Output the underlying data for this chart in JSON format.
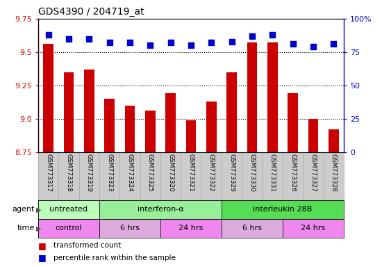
{
  "title": "GDS4390 / 204719_at",
  "samples": [
    "GSM773317",
    "GSM773318",
    "GSM773319",
    "GSM773323",
    "GSM773324",
    "GSM773325",
    "GSM773320",
    "GSM773321",
    "GSM773322",
    "GSM773329",
    "GSM773330",
    "GSM773331",
    "GSM773326",
    "GSM773327",
    "GSM773328"
  ],
  "red_values": [
    9.56,
    9.35,
    9.37,
    9.15,
    9.1,
    9.06,
    9.19,
    8.99,
    9.13,
    9.35,
    9.57,
    9.57,
    9.19,
    9.0,
    8.92
  ],
  "blue_values": [
    88,
    85,
    85,
    82,
    82,
    80,
    82,
    80,
    82,
    83,
    87,
    88,
    81,
    79,
    81
  ],
  "ylim_left": [
    8.75,
    9.75
  ],
  "ylim_right": [
    0,
    100
  ],
  "yticks_left": [
    8.75,
    9.0,
    9.25,
    9.5,
    9.75
  ],
  "yticks_right": [
    0,
    25,
    50,
    75,
    100
  ],
  "ytick_labels_right": [
    "0",
    "25",
    "50",
    "75",
    "100%"
  ],
  "bar_color": "#cc0000",
  "dot_color": "#0000cc",
  "agent_groups": [
    {
      "label": "untreated",
      "start": 0,
      "end": 3,
      "color": "#bbffbb"
    },
    {
      "label": "interferon-α",
      "start": 3,
      "end": 9,
      "color": "#99ee99"
    },
    {
      "label": "interleukin 28B",
      "start": 9,
      "end": 15,
      "color": "#55dd55"
    }
  ],
  "time_groups": [
    {
      "label": "control",
      "start": 0,
      "end": 3,
      "color": "#ee88ee"
    },
    {
      "label": "6 hrs",
      "start": 3,
      "end": 6,
      "color": "#ddaadd"
    },
    {
      "label": "24 hrs",
      "start": 6,
      "end": 9,
      "color": "#ee88ee"
    },
    {
      "label": "6 hrs",
      "start": 9,
      "end": 12,
      "color": "#ddaadd"
    },
    {
      "label": "24 hrs",
      "start": 12,
      "end": 15,
      "color": "#ee88ee"
    }
  ],
  "legend_red": "transformed count",
  "legend_blue": "percentile rank within the sample",
  "bar_width": 0.5,
  "dot_size": 30,
  "sample_col_color": "#cccccc",
  "sample_col_edge": "#aaaaaa"
}
